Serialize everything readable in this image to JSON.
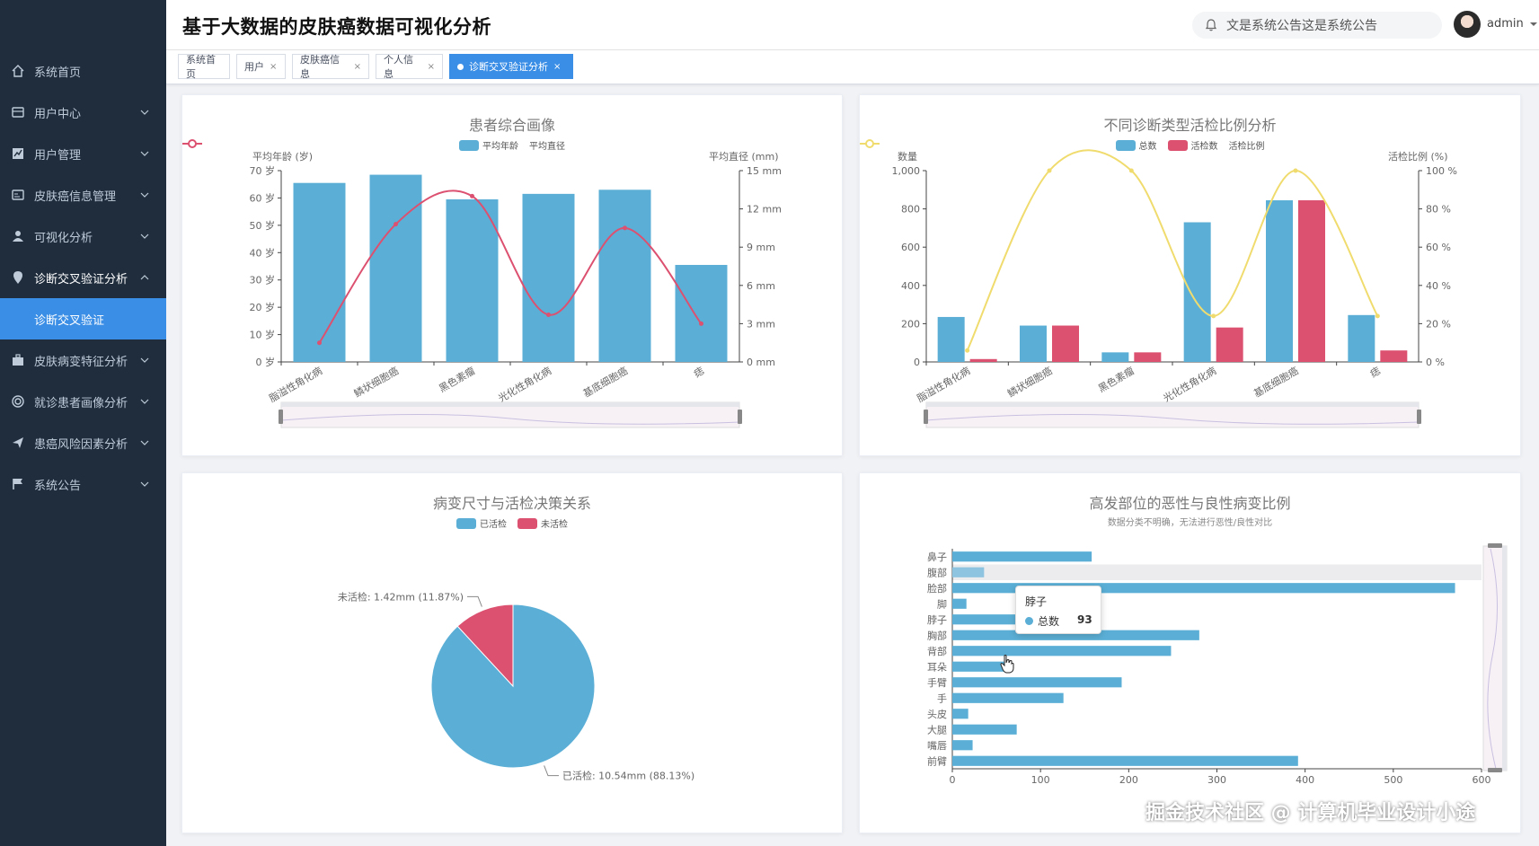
{
  "header": {
    "title": "基于大数据的皮肤癌数据可视化分析",
    "notice": "文是系统公告这是系统公告",
    "username": "admin"
  },
  "sidebar": {
    "items": [
      {
        "label": "系统首页",
        "icon": "home-icon"
      },
      {
        "label": "用户中心",
        "icon": "user-center-icon"
      },
      {
        "label": "用户管理",
        "icon": "chart-icon"
      },
      {
        "label": "皮肤癌信息管理",
        "icon": "card-icon"
      },
      {
        "label": "可视化分析",
        "icon": "person-icon"
      },
      {
        "label": "诊断交叉验证分析",
        "icon": "location-icon"
      },
      {
        "label": "诊断交叉验证",
        "icon": ""
      },
      {
        "label": "皮肤病变特征分析",
        "icon": "briefcase-icon"
      },
      {
        "label": "就诊患者画像分析",
        "icon": "target-icon"
      },
      {
        "label": "患癌风险因素分析",
        "icon": "send-icon"
      },
      {
        "label": "系统公告",
        "icon": "flag-icon"
      }
    ]
  },
  "tabs": [
    {
      "label": "系统首页",
      "closable": false
    },
    {
      "label": "用户",
      "closable": true
    },
    {
      "label": "皮肤癌信息",
      "closable": true
    },
    {
      "label": "个人信息",
      "closable": true
    },
    {
      "label": "诊断交叉验证分析",
      "closable": true,
      "active": true
    }
  ],
  "colors": {
    "blue": "#5bafd6",
    "red": "#dc5070",
    "yellow": "#f0dc6e",
    "sidebar": "#1f2d3d",
    "active": "#3a8ee6"
  },
  "watermark": "掘金技术社区 @ 计算机毕业设计小途",
  "tooltip": {
    "title": "脖子",
    "series": "总数",
    "value": "93"
  },
  "chart_data": [
    {
      "type": "bar",
      "title": "患者综合画像",
      "categories": [
        "脂溢性角化病",
        "鳞状细胞癌",
        "黑色素瘤",
        "光化性角化病",
        "基底细胞癌",
        "痣"
      ],
      "series": [
        {
          "name": "平均年龄",
          "type": "bar",
          "axis": "left",
          "values": [
            65.5,
            68.5,
            59.5,
            61.5,
            63,
            35.5
          ]
        },
        {
          "name": "平均直径",
          "type": "line",
          "axis": "right",
          "values": [
            1.5,
            10.8,
            13,
            3.7,
            10.5,
            3
          ]
        }
      ],
      "ylabel_left": "平均年龄 (岁)",
      "ylabel_right": "平均直径 (mm)",
      "ylim_left": [
        0,
        70
      ],
      "ylim_right": [
        0,
        15
      ],
      "yticks_left": [
        "0 岁",
        "10 岁",
        "20 岁",
        "30 岁",
        "40 岁",
        "50 岁",
        "60 岁",
        "70 岁"
      ],
      "yticks_right": [
        "0 mm",
        "3 mm",
        "6 mm",
        "9 mm",
        "12 mm",
        "15 mm"
      ]
    },
    {
      "type": "bar",
      "title": "不同诊断类型活检比例分析",
      "categories": [
        "脂溢性角化病",
        "鳞状细胞癌",
        "黑色素瘤",
        "光化性角化病",
        "基底细胞癌",
        "痣"
      ],
      "series": [
        {
          "name": "总数",
          "type": "bar",
          "axis": "left",
          "values": [
            235,
            190,
            50,
            730,
            845,
            245
          ]
        },
        {
          "name": "活检数",
          "type": "bar",
          "axis": "left",
          "values": [
            15,
            190,
            50,
            180,
            845,
            60
          ]
        },
        {
          "name": "活检比例",
          "type": "line",
          "axis": "right",
          "values": [
            6,
            100,
            100,
            24,
            100,
            24
          ]
        }
      ],
      "ylabel_left": "数量",
      "ylabel_right": "活检比例 (%)",
      "ylim_left": [
        0,
        1000
      ],
      "ylim_right": [
        0,
        100
      ],
      "yticks_left": [
        "0",
        "200",
        "400",
        "600",
        "800",
        "1,000"
      ],
      "yticks_right": [
        "0 %",
        "20 %",
        "40 %",
        "60 %",
        "80 %",
        "100 %"
      ]
    },
    {
      "type": "pie",
      "title": "病变尺寸与活检决策关系",
      "slices": [
        {
          "name": "已活检",
          "value": 10.54,
          "percent": 88.13,
          "label": "已活检: 10.54mm (88.13%)"
        },
        {
          "name": "未活检",
          "value": 1.42,
          "percent": 11.87,
          "label": "未活检: 1.42mm (11.87%)"
        }
      ]
    },
    {
      "type": "bar",
      "orientation": "horizontal",
      "title": "高发部位的恶性与良性病变比例",
      "subtitle": "数据分类不明确，无法进行恶性/良性对比",
      "categories": [
        "鼻子",
        "腹部",
        "脸部",
        "脚",
        "脖子",
        "胸部",
        "背部",
        "耳朵",
        "手臂",
        "手",
        "头皮",
        "大腿",
        "嘴唇",
        "前臂"
      ],
      "series": [
        {
          "name": "总数",
          "values": [
            158,
            36,
            570,
            16,
            93,
            280,
            248,
            60,
            192,
            126,
            18,
            73,
            23,
            392
          ]
        }
      ],
      "xlim": [
        0,
        600
      ],
      "xticks": [
        "0",
        "100",
        "200",
        "300",
        "400",
        "500",
        "600"
      ]
    }
  ]
}
